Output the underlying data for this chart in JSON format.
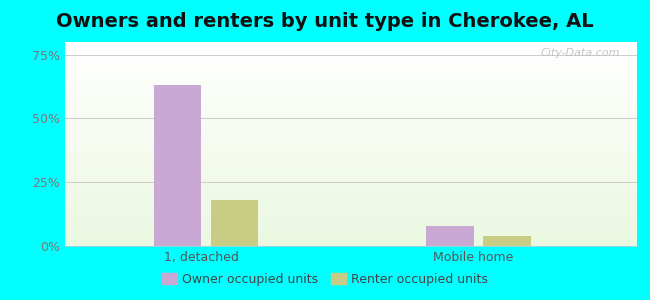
{
  "title": "Owners and renters by unit type in Cherokee, AL",
  "categories": [
    "1, detached",
    "Mobile home"
  ],
  "owner_values": [
    63,
    8
  ],
  "renter_values": [
    18,
    4
  ],
  "owner_color": "#c9a8d4",
  "renter_color": "#c8cc84",
  "yticks": [
    0,
    25,
    50,
    75
  ],
  "ylim": [
    0,
    80
  ],
  "bg_color": "#00ffff",
  "watermark": "City-Data.com",
  "legend_owner": "Owner occupied units",
  "legend_renter": "Renter occupied units",
  "title_fontsize": 14,
  "axis_label_fontsize": 9,
  "legend_fontsize": 9,
  "bar_width": 0.35,
  "x_positions": [
    1.0,
    3.0
  ],
  "xlim": [
    0.0,
    4.2
  ]
}
